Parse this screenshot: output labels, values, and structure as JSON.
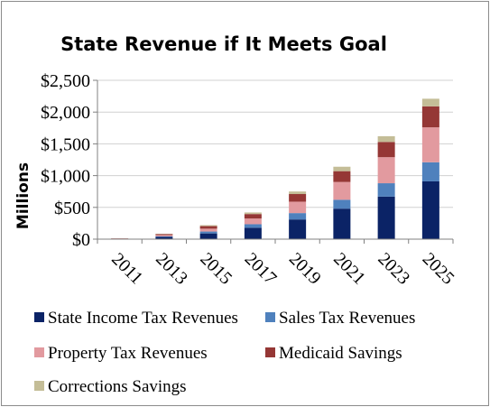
{
  "chart_data": {
    "type": "bar",
    "stacked": true,
    "title": "State Revenue if It Meets Goal",
    "ylabel": "Millions",
    "xlabel": "",
    "categories": [
      "2011",
      "2013",
      "2015",
      "2017",
      "2019",
      "2021",
      "2023",
      "2025"
    ],
    "ylim": [
      0,
      2500
    ],
    "yticks": [
      0,
      500,
      1000,
      1500,
      2000,
      2500
    ],
    "ytick_labels": [
      "$0",
      "$500",
      "$1,000",
      "$1,500",
      "$2,000",
      "$2,500"
    ],
    "grid": true,
    "legend_position": "bottom",
    "series": [
      {
        "name": "State Income Tax Revenues",
        "color": "#0b2366",
        "values": [
          5,
          35,
          90,
          180,
          310,
          480,
          670,
          910
        ]
      },
      {
        "name": "Sales Tax Revenues",
        "color": "#4f81bd",
        "values": [
          2,
          10,
          30,
          55,
          100,
          140,
          210,
          300
        ]
      },
      {
        "name": "Property Tax Revenues",
        "color": "#e29a9f",
        "values": [
          3,
          20,
          45,
          90,
          180,
          280,
          410,
          550
        ]
      },
      {
        "name": "Medicaid Savings",
        "color": "#953735",
        "values": [
          3,
          15,
          40,
          70,
          120,
          170,
          240,
          330
        ]
      },
      {
        "name": "Corrections Savings",
        "color": "#c4bd97",
        "values": [
          1,
          5,
          15,
          25,
          40,
          70,
          90,
          120
        ]
      }
    ]
  }
}
